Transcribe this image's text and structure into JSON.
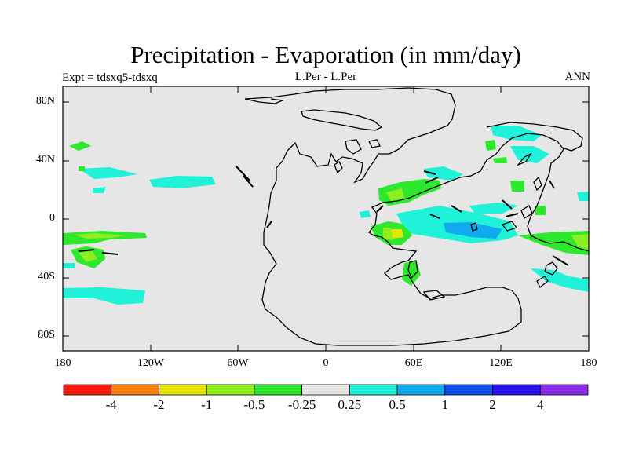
{
  "title": "Precipitation - Evaporation (in mm/day)",
  "left_label": "Expt = tdsxq5-tdsxq",
  "center_label": "L.Per - L.Per",
  "right_label": "ANN",
  "y_ticks": [
    "80N",
    "40N",
    "0",
    "40S",
    "80S"
  ],
  "x_ticks": [
    "180",
    "120W",
    "60W",
    "0",
    "60E",
    "120E",
    "180"
  ],
  "colorbar": {
    "colors": [
      "#ff1a0f",
      "#ff800d",
      "#e6e600",
      "#8fef1e",
      "#2ee82e",
      "#e6e6e6",
      "#1ff2d9",
      "#11aaee",
      "#1050f0",
      "#2c10f0",
      "#8a2ee8"
    ],
    "labels": [
      "-4",
      "-2",
      "-1",
      "-0.5",
      "-0.25",
      "0.25",
      "0.5",
      "1",
      "2",
      "4"
    ]
  },
  "colors": {
    "ocean": "#e6e6e6",
    "weak_positive": "#1ff2d9",
    "moderate_positive": "#11aaee",
    "weak_negative": "#2ee82e",
    "moderate_negative": "#8fef1e",
    "strong_negative": "#e6e600"
  }
}
